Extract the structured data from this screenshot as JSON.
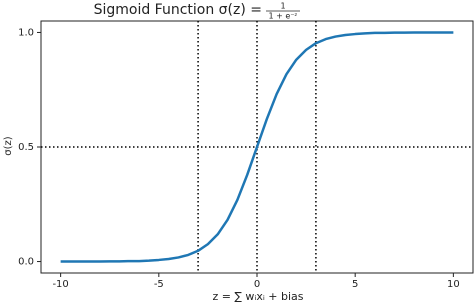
{
  "chart_data": {
    "type": "line",
    "title": "Sigmoid Function σ(z) =",
    "title_fraction": {
      "numerator": "1",
      "denominator": "1 + e⁻ᶻ"
    },
    "xlabel": "z = ∑ wᵢxᵢ + bias",
    "ylabel": "σ(z)",
    "x": [
      -10,
      -9.5,
      -9,
      -8.5,
      -8,
      -7.5,
      -7,
      -6.5,
      -6,
      -5.5,
      -5,
      -4.5,
      -4,
      -3.5,
      -3,
      -2.5,
      -2,
      -1.5,
      -1,
      -0.5,
      0,
      0.5,
      1,
      1.5,
      2,
      2.5,
      3,
      3.5,
      4,
      4.5,
      5,
      5.5,
      6,
      6.5,
      7,
      7.5,
      8,
      8.5,
      9,
      9.5,
      10
    ],
    "series": [
      {
        "color": "#1f77b4",
        "values": [
          0.0,
          0.0,
          0.0,
          0.0,
          0.0,
          0.001,
          0.001,
          0.002,
          0.002,
          0.004,
          0.007,
          0.011,
          0.018,
          0.029,
          0.047,
          0.076,
          0.119,
          0.182,
          0.269,
          0.378,
          0.5,
          0.622,
          0.731,
          0.818,
          0.881,
          0.924,
          0.953,
          0.971,
          0.982,
          0.989,
          0.993,
          0.996,
          0.998,
          0.998,
          0.999,
          0.999,
          1.0,
          1.0,
          1.0,
          1.0,
          1.0
        ]
      }
    ],
    "vlines": [
      -3,
      0,
      3
    ],
    "hlines": [
      0.5
    ],
    "xlim": [
      -11,
      11
    ],
    "ylim": [
      -0.05,
      1.05
    ],
    "xticks": [
      -10,
      -5,
      0,
      5,
      10
    ],
    "yticks": [
      {
        "value": 0,
        "label": "0.0"
      },
      {
        "value": 0.5,
        "label": "0.5"
      },
      {
        "value": 1,
        "label": "1.0"
      }
    ]
  }
}
